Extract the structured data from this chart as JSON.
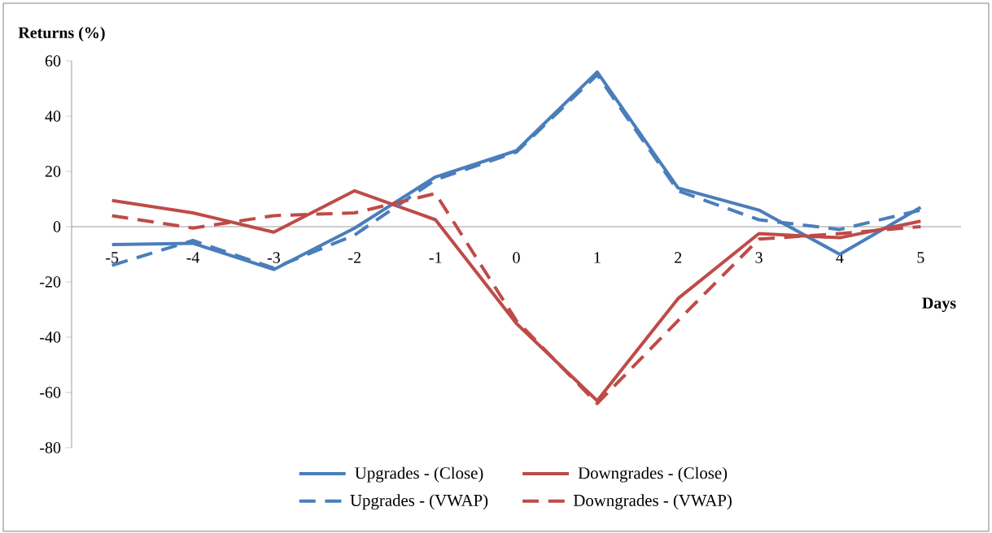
{
  "chart_data": {
    "type": "line",
    "xlabel": "Days",
    "ylabel": "Returns (%)",
    "categories": [
      "-5",
      "-4",
      "-3",
      "-2",
      "-1",
      "0",
      "1",
      "2",
      "3",
      "4",
      "5"
    ],
    "ylim": [
      -80,
      60
    ],
    "yticks": [
      -80,
      -60,
      -40,
      -20,
      0,
      20,
      40,
      60
    ],
    "legend": "bottom",
    "grid": false,
    "series": [
      {
        "name": "Upgrades - (Close)",
        "color": "#4a7ebb",
        "line_style": "solid",
        "values": [
          -6.5,
          -6,
          -15.5,
          -0.5,
          18,
          27.5,
          56,
          14,
          6,
          -10,
          7
        ]
      },
      {
        "name": "Downgrades - (Close)",
        "color": "#be4b48",
        "line_style": "solid",
        "values": [
          9.5,
          5,
          -2,
          13,
          2.5,
          -35,
          -63,
          -26,
          -2.5,
          -4,
          2
        ]
      },
      {
        "name": "Upgrades - (VWAP)",
        "color": "#4a7ebb",
        "line_style": "dashed",
        "values": [
          -14,
          -5,
          -15,
          -3,
          17,
          27,
          55,
          13,
          2.5,
          -1,
          6
        ]
      },
      {
        "name": "Downgrades - (VWAP)",
        "color": "#be4b48",
        "line_style": "dashed",
        "values": [
          4,
          -0.5,
          4,
          5,
          12,
          -34,
          -64,
          -34,
          -4.5,
          -2.5,
          0
        ]
      }
    ]
  }
}
